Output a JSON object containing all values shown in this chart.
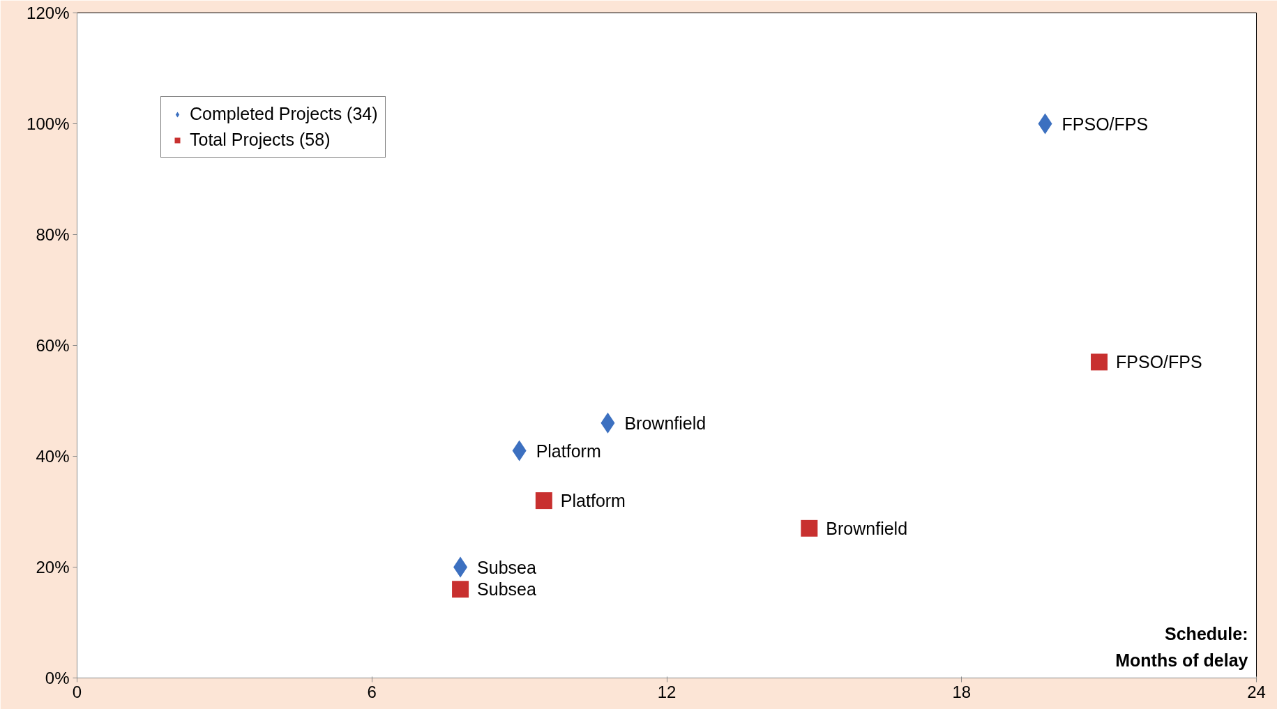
{
  "chart_data": {
    "type": "scatter",
    "xlabel": "Schedule:\nMonths of delay",
    "xlim": [
      0,
      24
    ],
    "xticks": [
      0,
      6,
      12,
      18,
      24
    ],
    "ylim": [
      0,
      120
    ],
    "yticks": [
      {
        "value": 0,
        "label": "0%"
      },
      {
        "value": 20,
        "label": "20%"
      },
      {
        "value": 40,
        "label": "40%"
      },
      {
        "value": 60,
        "label": "60%"
      },
      {
        "value": 80,
        "label": "80%"
      },
      {
        "value": 100,
        "label": "100%"
      },
      {
        "value": 120,
        "label": "120%"
      }
    ],
    "grid": false,
    "legend": "top left",
    "series": [
      {
        "name": "Completed Projects (34)",
        "color": "#3c70c0",
        "marker": "diamond",
        "x": [
          19.7,
          10.8,
          9.0,
          7.8
        ],
        "values": [
          100,
          46,
          41,
          20
        ]
      },
      {
        "name": "Total Projects (58)",
        "color": "#c8302f",
        "marker": "square",
        "x": [
          20.8,
          9.5,
          14.9,
          7.8
        ],
        "values": [
          57,
          32,
          27,
          16
        ]
      }
    ],
    "annotations": [
      {
        "text": "FPSO/FPS",
        "x": 19.7,
        "y": 100
      },
      {
        "text": "Brownfield",
        "x": 10.8,
        "y": 46
      },
      {
        "text": "Platform",
        "x": 9.0,
        "y": 41
      },
      {
        "text": "Subsea",
        "x": 7.8,
        "y": 20
      },
      {
        "text": "FPSO/FPS",
        "x": 20.8,
        "y": 57
      },
      {
        "text": "Platform",
        "x": 9.5,
        "y": 32
      },
      {
        "text": "Brownfield",
        "x": 14.9,
        "y": 27
      },
      {
        "text": "Subsea",
        "x": 7.8,
        "y": 16
      }
    ]
  }
}
